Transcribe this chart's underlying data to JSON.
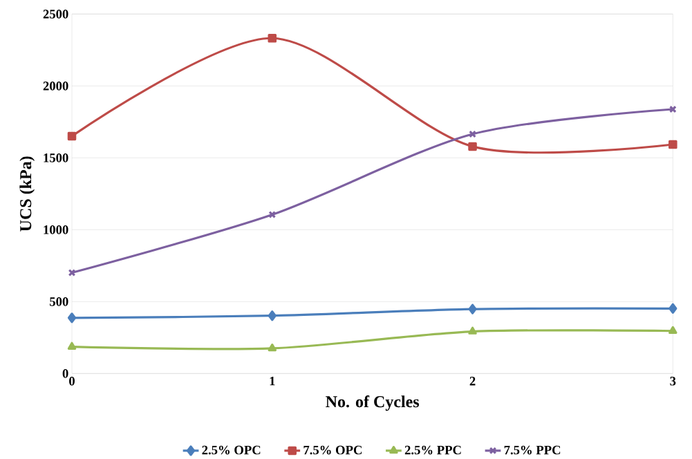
{
  "chart_data": {
    "type": "line",
    "xlabel": "No. of Cycles",
    "ylabel": "UCS (kPa)",
    "x": [
      0,
      1,
      2,
      3
    ],
    "series": [
      {
        "name": "2.5% OPC",
        "color": "#4a7ebb",
        "marker": "diamond",
        "values": [
          387,
          402,
          448,
          452
        ]
      },
      {
        "name": "7.5% OPC",
        "color": "#be4b48",
        "marker": "square",
        "values": [
          1651,
          2332,
          1579,
          1593
        ]
      },
      {
        "name": "2.5% PPC",
        "color": "#98b954",
        "marker": "triangle",
        "values": [
          186,
          175,
          292,
          296
        ]
      },
      {
        "name": "7.5% PPC",
        "color": "#7d60a0",
        "marker": "cross",
        "values": [
          701,
          1105,
          1665,
          1838
        ]
      }
    ],
    "xlim": [
      0,
      3
    ],
    "xticks": [
      0,
      1,
      2,
      3
    ],
    "ylim": [
      0,
      2500
    ],
    "yticks": [
      0,
      500,
      1000,
      1500,
      2000,
      2500
    ],
    "grid": "y",
    "legend": "bottom",
    "line_style": "solid"
  }
}
